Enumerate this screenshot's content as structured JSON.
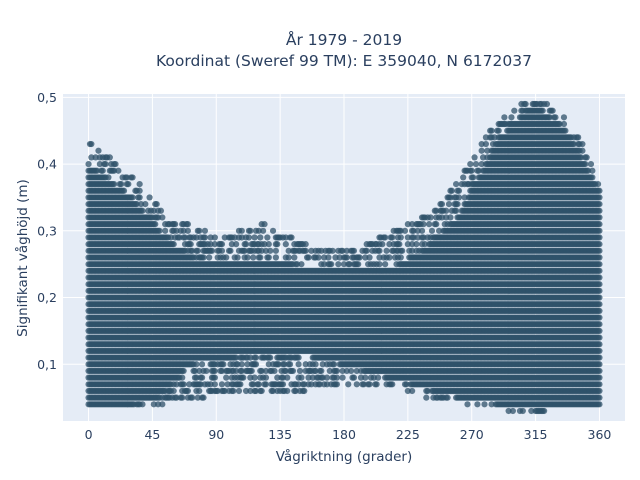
{
  "chart_data": {
    "type": "scatter",
    "title_lines": [
      "År 1979 - 2019",
      "Koordinat (Sweref 99 TM): E 359040, N 6172037"
    ],
    "xlabel": "Vågriktning (grader)",
    "ylabel": "Signifikant våghöjd (m)",
    "xlim": [
      -18,
      378
    ],
    "ylim": [
      0.015,
      0.505
    ],
    "xticks": [
      0,
      45,
      90,
      135,
      180,
      225,
      270,
      315,
      360
    ],
    "xtick_labels": [
      "0",
      "45",
      "90",
      "135",
      "180",
      "225",
      "270",
      "315",
      "360"
    ],
    "yticks": [
      0.1,
      0.2,
      0.3,
      0.4,
      0.5
    ],
    "ytick_labels": [
      "0,1",
      "0,2",
      "0,3",
      "0,4",
      "0,5"
    ],
    "grid": true,
    "background": "#e5ecf6",
    "marker_color": "#2f5169",
    "marker_opacity": 0.75,
    "x_step": 1,
    "y_step": 0.01,
    "series": [
      {
        "envelope": [
          [
            0,
            0.04,
            0.43
          ],
          [
            10,
            0.04,
            0.41
          ],
          [
            20,
            0.04,
            0.4
          ],
          [
            30,
            0.04,
            0.38
          ],
          [
            40,
            0.04,
            0.36
          ],
          [
            50,
            0.04,
            0.33
          ],
          [
            60,
            0.05,
            0.32
          ],
          [
            70,
            0.05,
            0.31
          ],
          [
            80,
            0.05,
            0.3
          ],
          [
            90,
            0.06,
            0.29
          ],
          [
            100,
            0.06,
            0.29
          ],
          [
            110,
            0.06,
            0.3
          ],
          [
            120,
            0.06,
            0.31
          ],
          [
            130,
            0.06,
            0.3
          ],
          [
            140,
            0.06,
            0.29
          ],
          [
            150,
            0.06,
            0.28
          ],
          [
            160,
            0.07,
            0.27
          ],
          [
            170,
            0.07,
            0.27
          ],
          [
            180,
            0.07,
            0.27
          ],
          [
            190,
            0.07,
            0.27
          ],
          [
            200,
            0.07,
            0.28
          ],
          [
            210,
            0.07,
            0.29
          ],
          [
            220,
            0.06,
            0.3
          ],
          [
            230,
            0.06,
            0.31
          ],
          [
            240,
            0.05,
            0.32
          ],
          [
            250,
            0.05,
            0.34
          ],
          [
            260,
            0.05,
            0.37
          ],
          [
            270,
            0.04,
            0.4
          ],
          [
            280,
            0.04,
            0.44
          ],
          [
            290,
            0.04,
            0.46
          ],
          [
            300,
            0.03,
            0.48
          ],
          [
            310,
            0.03,
            0.49
          ],
          [
            320,
            0.03,
            0.49
          ],
          [
            330,
            0.04,
            0.48
          ],
          [
            340,
            0.04,
            0.45
          ],
          [
            350,
            0.04,
            0.42
          ],
          [
            360,
            0.04,
            0.36
          ]
        ],
        "dense_band": [
          [
            0,
            0.04,
            0.4
          ],
          [
            30,
            0.04,
            0.35
          ],
          [
            50,
            0.05,
            0.3
          ],
          [
            70,
            0.1,
            0.26
          ],
          [
            100,
            0.11,
            0.25
          ],
          [
            140,
            0.12,
            0.25
          ],
          [
            180,
            0.1,
            0.24
          ],
          [
            210,
            0.08,
            0.24
          ],
          [
            230,
            0.07,
            0.26
          ],
          [
            260,
            0.05,
            0.32
          ],
          [
            290,
            0.04,
            0.44
          ],
          [
            315,
            0.04,
            0.49
          ],
          [
            340,
            0.04,
            0.44
          ],
          [
            360,
            0.04,
            0.36
          ]
        ]
      }
    ]
  }
}
